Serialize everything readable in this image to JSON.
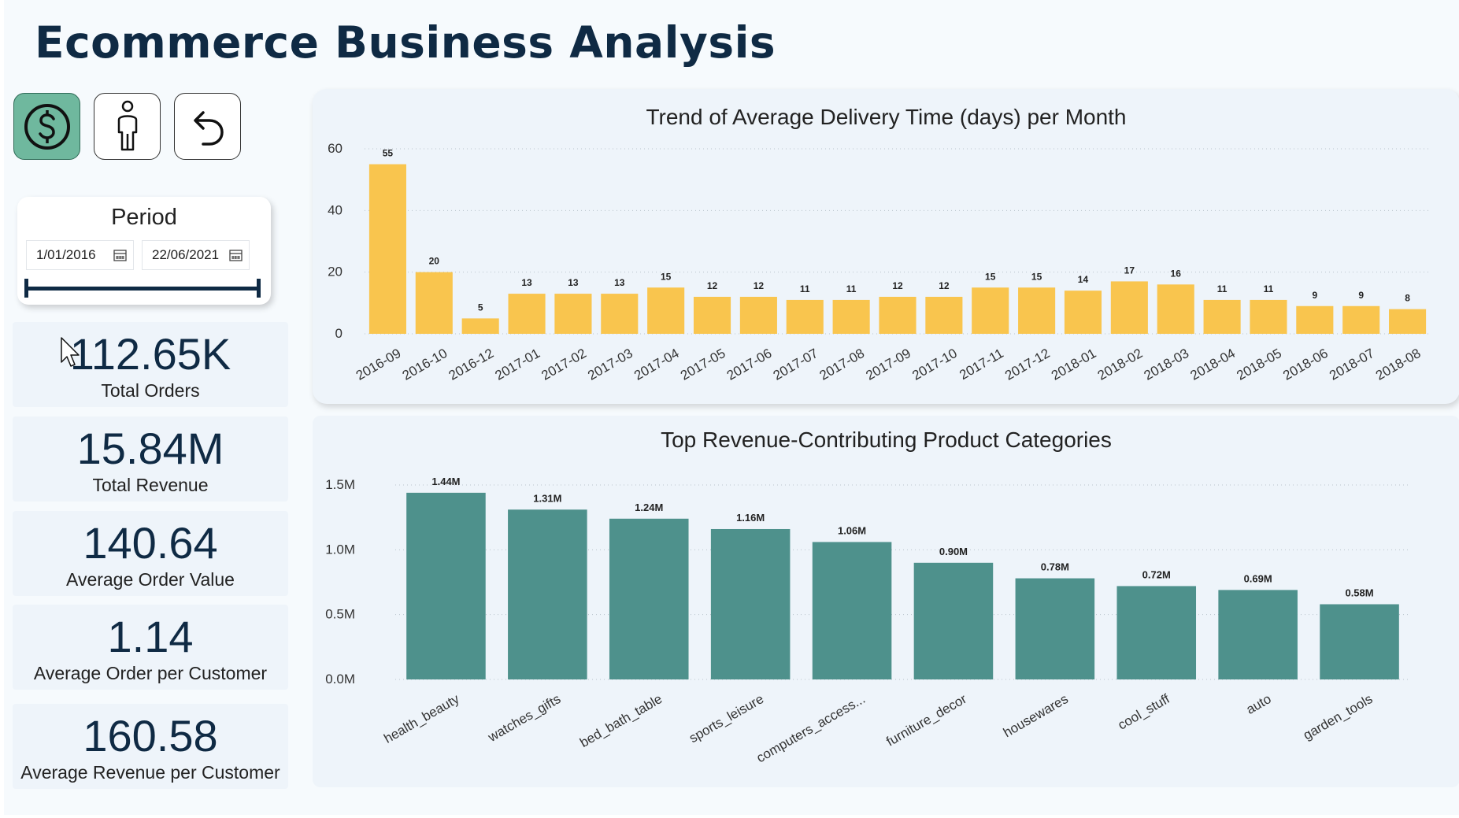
{
  "header": {
    "title": "Ecommerce Business Analysis"
  },
  "nav": {
    "buttons": [
      {
        "name": "revenue",
        "icon": "dollar-circle-icon",
        "active": true
      },
      {
        "name": "customer",
        "icon": "person-icon",
        "active": false
      },
      {
        "name": "back",
        "icon": "undo-arrow-icon",
        "active": false
      }
    ]
  },
  "period": {
    "title": "Period",
    "start": "1/01/2016",
    "end": "22/06/2021",
    "icon": "calendar-icon"
  },
  "kpis": [
    {
      "value": "112.65K",
      "label": "Total Orders"
    },
    {
      "value": "15.84M",
      "label": "Total Revenue"
    },
    {
      "value": "140.64",
      "label": "Average Order Value"
    },
    {
      "value": "1.14",
      "label": "Average Order per Customer"
    },
    {
      "value": "160.58",
      "label": "Average Revenue per Customer"
    }
  ],
  "colors": {
    "accent": "#0f2a44",
    "delivery_bar": "#f9c54e",
    "revenue_bar": "#4e918c",
    "active_button": "#6fb89e"
  },
  "chart_data": [
    {
      "type": "bar",
      "title": "Trend of Average Delivery Time (days) per Month",
      "categories": [
        "2016-09",
        "2016-10",
        "2016-12",
        "2017-01",
        "2017-02",
        "2017-03",
        "2017-04",
        "2017-05",
        "2017-06",
        "2017-07",
        "2017-08",
        "2017-09",
        "2017-10",
        "2017-11",
        "2017-12",
        "2018-01",
        "2018-02",
        "2018-03",
        "2018-04",
        "2018-05",
        "2018-06",
        "2018-07",
        "2018-08"
      ],
      "values": [
        55,
        20,
        5,
        13,
        13,
        13,
        15,
        12,
        12,
        11,
        11,
        12,
        12,
        15,
        15,
        14,
        17,
        16,
        11,
        11,
        9,
        9,
        8
      ],
      "data_labels": [
        "55",
        "20",
        "5",
        "13",
        "13",
        "13",
        "15",
        "12",
        "12",
        "11",
        "11",
        "12",
        "12",
        "15",
        "15",
        "14",
        "17",
        "16",
        "11",
        "11",
        "9",
        "9",
        "8"
      ],
      "yticks": [
        "0",
        "20",
        "40",
        "60"
      ],
      "ylim": [
        0,
        60
      ],
      "grid": true
    },
    {
      "type": "bar",
      "title": "Top Revenue-Contributing Product Categories",
      "categories": [
        "health_beauty",
        "watches_gifts",
        "bed_bath_table",
        "sports_leisure",
        "computers_access...",
        "furniture_decor",
        "housewares",
        "cool_stuff",
        "auto",
        "garden_tools"
      ],
      "values": [
        1.44,
        1.31,
        1.24,
        1.16,
        1.06,
        0.9,
        0.78,
        0.72,
        0.69,
        0.58
      ],
      "data_labels": [
        "1.44M",
        "1.31M",
        "1.24M",
        "1.16M",
        "1.06M",
        "0.90M",
        "0.78M",
        "0.72M",
        "0.69M",
        "0.58M"
      ],
      "yticks": [
        "0.0M",
        "0.5M",
        "1.0M",
        "1.5M"
      ],
      "ylim": [
        0,
        1.5
      ],
      "grid": true
    }
  ]
}
